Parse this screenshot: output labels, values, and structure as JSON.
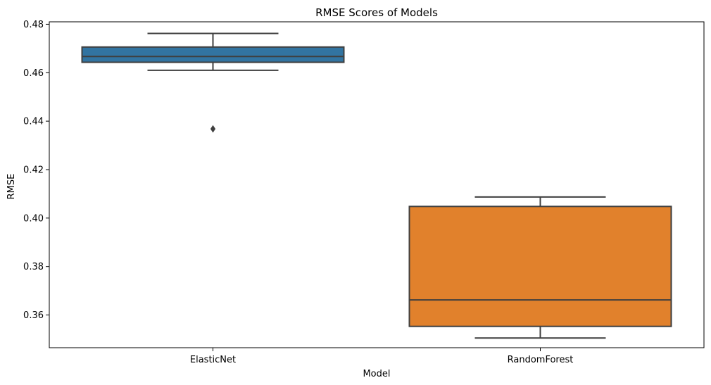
{
  "chart_data": {
    "type": "box",
    "title": "RMSE Scores of Models",
    "xlabel": "Model",
    "ylabel": "RMSE",
    "ylim": [
      0.3465,
      0.481
    ],
    "yticks": [
      "0.36",
      "0.38",
      "0.40",
      "0.42",
      "0.44",
      "0.46",
      "0.48"
    ],
    "ytick_values": [
      0.36,
      0.38,
      0.4,
      0.42,
      0.44,
      0.46,
      0.48
    ],
    "grid": false,
    "categories": [
      "ElasticNet",
      "RandomForest"
    ],
    "boxes": [
      {
        "category": "ElasticNet",
        "whisker_low": 0.461,
        "q1": 0.4643,
        "median": 0.4667,
        "q3": 0.4706,
        "whisker_high": 0.4762,
        "outliers": [
          0.4368
        ],
        "color": "#3274a1"
      },
      {
        "category": "RandomForest",
        "whisker_low": 0.3505,
        "q1": 0.3553,
        "median": 0.3662,
        "q3": 0.4048,
        "whisker_high": 0.4087,
        "outliers": [],
        "color": "#e1812c"
      }
    ]
  }
}
